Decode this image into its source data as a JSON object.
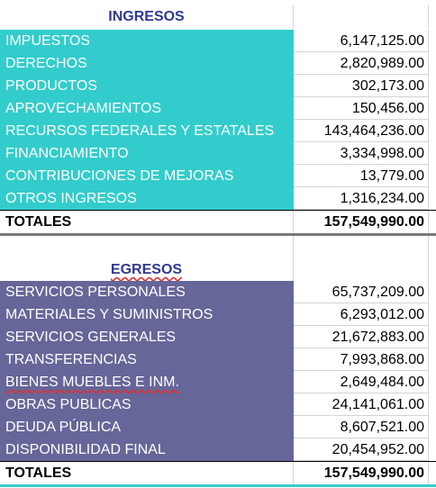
{
  "ingresos": {
    "title": "INGRESOS",
    "rows": [
      {
        "label": "IMPUESTOS",
        "value": "6,147,125.00"
      },
      {
        "label": "DERECHOS",
        "value": "2,820,989.00"
      },
      {
        "label": "PRODUCTOS",
        "value": "302,173.00"
      },
      {
        "label": "APROVECHAMIENTOS",
        "value": "150,456.00"
      },
      {
        "label": "RECURSOS FEDERALES Y ESTATALES",
        "value": "143,464,236.00"
      },
      {
        "label": "FINANCIAMIENTO",
        "value": "3,334,998.00"
      },
      {
        "label": "CONTRIBUCIONES DE MEJORAS",
        "value": "13,779.00"
      },
      {
        "label": "OTROS INGRESOS",
        "value": "1,316,234.00"
      }
    ],
    "total_label": "TOTALES",
    "total_value": "157,549,990.00"
  },
  "egresos": {
    "title": "EGRESOS",
    "rows": [
      {
        "label": "SERVICIOS PERSONALES",
        "value": "65,737,209.00"
      },
      {
        "label": "MATERIALES Y SUMINISTROS",
        "value": "6,293,012.00"
      },
      {
        "label": "SERVICIOS GENERALES",
        "value": "21,672,883.00"
      },
      {
        "label": "TRANSFERENCIAS",
        "value": "7,993,868.00"
      },
      {
        "label": "BIENES MUEBLES E INM.",
        "value": "2,649,484.00"
      },
      {
        "label": "OBRAS PUBLICAS",
        "value": "24,141,061.00"
      },
      {
        "label": "DEUDA PÚBLICA",
        "value": "8,607,521.00"
      },
      {
        "label": "DISPONIBILIDAD FINAL",
        "value": "20,454,952.00"
      }
    ],
    "total_label": "TOTALES",
    "total_value": "157,549,990.00"
  },
  "colors": {
    "ingresos_fill": "#33cccc",
    "egresos_fill": "#666699",
    "header_text": "#2f3a8f"
  }
}
